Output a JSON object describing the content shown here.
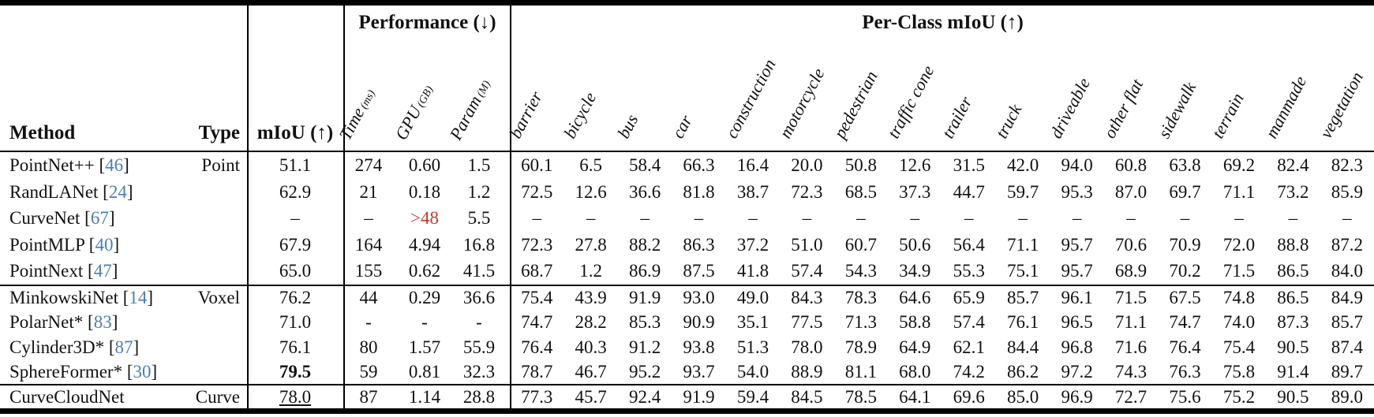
{
  "colors": {
    "citation_blue": "#4a7ebc",
    "alert_red": "#c63b2a",
    "rule_black": "#000000"
  },
  "table": {
    "headers": {
      "method": "Method",
      "type": "Type",
      "miou": "mIoU (↑)",
      "performance_group": "Performance (↓)",
      "perclass_group": "Per-Class mIoU (↑)",
      "performance_cols": [
        {
          "label": "Time",
          "unit": "(ms)"
        },
        {
          "label": "GPU",
          "unit": "(GB)"
        },
        {
          "label": "Param",
          "unit": "(M)"
        }
      ],
      "class_cols": [
        "barrier",
        "bicycle",
        "bus",
        "car",
        "construction",
        "motorcycle",
        "pedestrian",
        "traffic cone",
        "trailer",
        "truck",
        "driveable",
        "other flat",
        "sidewalk",
        "terrain",
        "manmade",
        "vegetation"
      ]
    },
    "rows": [
      {
        "method": "PointNet++",
        "cite": "46",
        "type": "Point",
        "miou": "51.1",
        "time": "274",
        "gpu": "0.60",
        "param": "1.5",
        "classes": [
          "60.1",
          "6.5",
          "58.4",
          "66.3",
          "16.4",
          "20.0",
          "50.8",
          "12.6",
          "31.5",
          "42.0",
          "94.0",
          "60.8",
          "63.8",
          "69.2",
          "82.4",
          "82.3"
        ]
      },
      {
        "method": "RandLANet",
        "cite": "24",
        "type": "",
        "miou": "62.9",
        "time": "21",
        "gpu": "0.18",
        "param": "1.2",
        "classes": [
          "72.5",
          "12.6",
          "36.6",
          "81.8",
          "38.7",
          "72.3",
          "68.5",
          "37.3",
          "44.7",
          "59.7",
          "95.3",
          "87.0",
          "69.7",
          "71.1",
          "73.2",
          "85.9"
        ]
      },
      {
        "method": "CurveNet",
        "cite": "67",
        "type": "",
        "miou": "–",
        "time": "–",
        "gpu": ">48",
        "gpu_alert": true,
        "param": "5.5",
        "classes": [
          "–",
          "–",
          "–",
          "–",
          "–",
          "–",
          "–",
          "–",
          "–",
          "–",
          "–",
          "–",
          "–",
          "–",
          "–",
          "–"
        ]
      },
      {
        "method": "PointMLP",
        "cite": "40",
        "type": "",
        "miou": "67.9",
        "time": "164",
        "gpu": "4.94",
        "param": "16.8",
        "classes": [
          "72.3",
          "27.8",
          "88.2",
          "86.3",
          "37.2",
          "51.0",
          "60.7",
          "50.6",
          "56.4",
          "71.1",
          "95.7",
          "70.6",
          "70.9",
          "72.0",
          "88.8",
          "87.2"
        ]
      },
      {
        "method": "PointNext",
        "cite": "47",
        "type": "",
        "miou": "65.0",
        "time": "155",
        "gpu": "0.62",
        "param": "41.5",
        "classes": [
          "68.7",
          "1.2",
          "86.9",
          "87.5",
          "41.8",
          "57.4",
          "54.3",
          "34.9",
          "55.3",
          "75.1",
          "95.7",
          "68.9",
          "70.2",
          "71.5",
          "86.5",
          "84.0"
        ]
      },
      {
        "method": "MinkowskiNet",
        "cite": "14",
        "type": "Voxel",
        "miou": "76.2",
        "time": "44",
        "gpu": "0.29",
        "param": "36.6",
        "classes": [
          "75.4",
          "43.9",
          "91.9",
          "93.0",
          "49.0",
          "84.3",
          "78.3",
          "64.6",
          "65.9",
          "85.7",
          "96.1",
          "71.5",
          "67.5",
          "74.8",
          "86.5",
          "84.9"
        ]
      },
      {
        "method": "PolarNet*",
        "cite": "83",
        "type": "",
        "miou": "71.0",
        "time": "-",
        "gpu": "-",
        "param": "-",
        "classes": [
          "74.7",
          "28.2",
          "85.3",
          "90.9",
          "35.1",
          "77.5",
          "71.3",
          "58.8",
          "57.4",
          "76.1",
          "96.5",
          "71.1",
          "74.7",
          "74.0",
          "87.3",
          "85.7"
        ]
      },
      {
        "method": "Cylinder3D*",
        "cite": "87",
        "type": "",
        "miou": "76.1",
        "time": "80",
        "gpu": "1.57",
        "param": "55.9",
        "classes": [
          "76.4",
          "40.3",
          "91.2",
          "93.8",
          "51.3",
          "78.0",
          "78.9",
          "64.9",
          "62.1",
          "84.4",
          "96.8",
          "71.6",
          "76.4",
          "75.4",
          "90.5",
          "87.4"
        ]
      },
      {
        "method": "SphereFormer*",
        "cite": "30",
        "type": "",
        "miou": "79.5",
        "miou_bold": true,
        "time": "59",
        "gpu": "0.81",
        "param": "32.3",
        "classes": [
          "78.7",
          "46.7",
          "95.2",
          "93.7",
          "54.0",
          "88.9",
          "81.1",
          "68.0",
          "74.2",
          "86.2",
          "97.2",
          "74.3",
          "76.3",
          "75.8",
          "91.4",
          "89.7"
        ]
      },
      {
        "method": "CurveCloudNet",
        "cite": "",
        "type": "Curve",
        "miou": "78.0",
        "miou_underline": true,
        "time": "87",
        "gpu": "1.14",
        "param": "28.8",
        "classes": [
          "77.3",
          "45.7",
          "92.4",
          "91.9",
          "59.4",
          "84.5",
          "78.5",
          "64.1",
          "69.6",
          "85.0",
          "96.9",
          "72.7",
          "75.6",
          "75.2",
          "90.5",
          "89.0"
        ]
      }
    ]
  }
}
